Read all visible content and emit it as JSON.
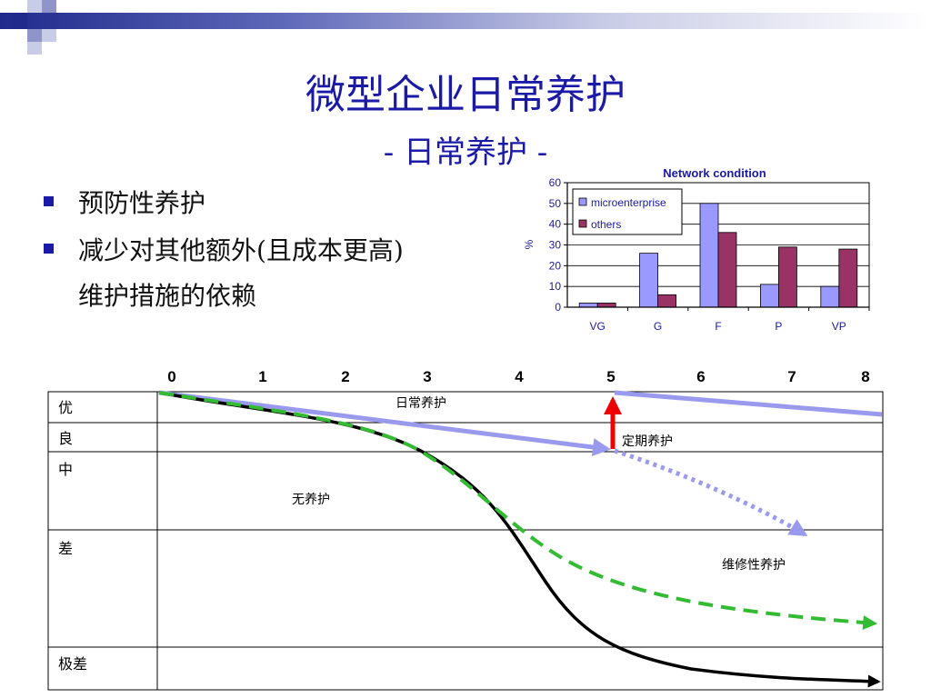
{
  "slide": {
    "title": "微型企业日常养护",
    "subtitle": "- 日常养护 -",
    "bullets": [
      {
        "line1": "预防性养护",
        "line2": ""
      },
      {
        "line1": "减少对其他额外(且成本更高)",
        "line2": "维护措施的依赖"
      }
    ]
  },
  "chart_data": {
    "type": "bar",
    "title": "Network condition",
    "ylabel": "%",
    "xlabel": "",
    "ylim": [
      0,
      60
    ],
    "yticks": [
      0,
      10,
      20,
      30,
      40,
      50,
      60
    ],
    "categories": [
      "VG",
      "G",
      "F",
      "P",
      "VP"
    ],
    "series": [
      {
        "name": "microenterprise",
        "color": "#9999ff",
        "values": [
          2,
          26,
          50,
          11,
          10
        ]
      },
      {
        "name": "others",
        "color": "#993366",
        "values": [
          2,
          6,
          36,
          29,
          28
        ]
      }
    ],
    "legend_position": "top-left",
    "grid": true
  },
  "diagram": {
    "x_ticks": [
      "0",
      "1",
      "2",
      "3",
      "4",
      "5",
      "6",
      "7",
      "8"
    ],
    "condition_rows": [
      "优",
      "良",
      "中",
      "差",
      "极差"
    ],
    "annotations": {
      "routine": "日常养护",
      "periodic": "定期养护",
      "none": "无养护",
      "repair": "维修性养护"
    },
    "colors": {
      "routine_line": "#9999ee",
      "periodic_arrow": "#ee0000",
      "no_maintenance": "#000000",
      "repair_dashed": "#33bb33"
    }
  }
}
